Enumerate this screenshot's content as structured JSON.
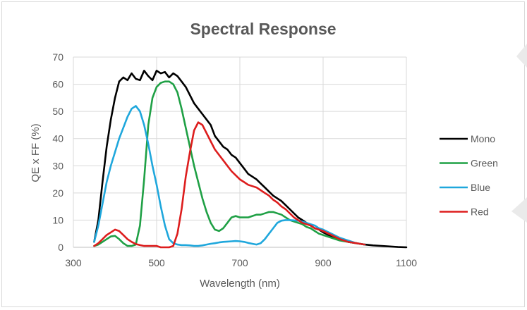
{
  "chart_data": {
    "type": "line",
    "title": "Spectral Response",
    "xlabel": "Wavelength (nm)",
    "ylabel": "QE x FF (%)",
    "xlim": [
      300,
      1100
    ],
    "ylim": [
      0,
      70
    ],
    "xticks": [
      300,
      500,
      700,
      900,
      1100
    ],
    "yticks": [
      0,
      10,
      20,
      30,
      40,
      50,
      60,
      70
    ],
    "grid": "vertical and horizontal",
    "legend_position": "right",
    "series": [
      {
        "name": "Mono",
        "color": "#000000",
        "x": [
          350,
          360,
          370,
          380,
          390,
          400,
          410,
          420,
          430,
          440,
          450,
          460,
          470,
          480,
          490,
          500,
          510,
          520,
          530,
          540,
          550,
          560,
          570,
          580,
          590,
          600,
          610,
          620,
          630,
          640,
          650,
          660,
          670,
          680,
          690,
          700,
          710,
          720,
          730,
          740,
          750,
          760,
          770,
          780,
          790,
          800,
          810,
          820,
          830,
          840,
          850,
          860,
          870,
          880,
          890,
          900,
          920,
          940,
          960,
          980,
          1000,
          1020,
          1040,
          1060,
          1080,
          1100
        ],
        "y": [
          2,
          10,
          24,
          37,
          47,
          55,
          61,
          62.5,
          61.5,
          64,
          62,
          61.5,
          65,
          63,
          61.5,
          65,
          64,
          64.5,
          62.5,
          64,
          63,
          61,
          59,
          56,
          53,
          51,
          49,
          47,
          45,
          41,
          39,
          37,
          36,
          34,
          33,
          31,
          29,
          27,
          26,
          25,
          23.5,
          22,
          20.5,
          19,
          18,
          17,
          15.5,
          14,
          12.5,
          11,
          10,
          9,
          8,
          7,
          6.5,
          5.5,
          4,
          3,
          2,
          1.5,
          1,
          0.7,
          0.5,
          0.3,
          0.1,
          0
        ]
      },
      {
        "name": "Green",
        "color": "#1fa045",
        "x": [
          350,
          360,
          370,
          380,
          390,
          400,
          410,
          420,
          430,
          440,
          450,
          460,
          470,
          480,
          490,
          500,
          510,
          520,
          530,
          540,
          550,
          560,
          570,
          580,
          590,
          600,
          610,
          620,
          630,
          640,
          650,
          660,
          670,
          680,
          690,
          700,
          710,
          720,
          730,
          740,
          750,
          760,
          770,
          780,
          790,
          800,
          810,
          820,
          830,
          840,
          850,
          860,
          870,
          880,
          890,
          900,
          920,
          940,
          960,
          980,
          1000
        ],
        "y": [
          0.5,
          1,
          2,
          3,
          4,
          4.2,
          3,
          1.5,
          0.5,
          0.5,
          1,
          8,
          25,
          45,
          55,
          59,
          60.5,
          61,
          61,
          60,
          57,
          51,
          44,
          37,
          30,
          24,
          18,
          13,
          9,
          6.5,
          6,
          7,
          9,
          11,
          11.5,
          11,
          11,
          11,
          11.5,
          12,
          12,
          12.5,
          13,
          13,
          12.5,
          12,
          11,
          10,
          9.5,
          9,
          8.5,
          7.5,
          7,
          6,
          5,
          4.5,
          3.5,
          2.5,
          2,
          1.5,
          1
        ]
      },
      {
        "name": "Blue",
        "color": "#1fa7dc",
        "x": [
          350,
          360,
          370,
          380,
          390,
          400,
          410,
          420,
          430,
          440,
          450,
          460,
          470,
          480,
          490,
          500,
          510,
          520,
          530,
          540,
          550,
          560,
          570,
          580,
          590,
          600,
          610,
          620,
          630,
          640,
          650,
          660,
          670,
          680,
          690,
          700,
          710,
          720,
          730,
          740,
          750,
          760,
          770,
          780,
          790,
          800,
          810,
          820,
          830,
          840,
          850,
          860,
          870,
          880,
          890,
          900,
          920,
          940,
          960,
          980,
          1000
        ],
        "y": [
          2,
          8,
          16,
          24,
          30,
          35,
          40,
          44,
          48,
          51,
          52,
          50,
          45,
          38,
          30,
          23,
          15,
          8,
          3,
          1.5,
          1,
          0.8,
          0.8,
          0.7,
          0.5,
          0.5,
          0.7,
          1,
          1.3,
          1.5,
          1.8,
          2,
          2.1,
          2.2,
          2.3,
          2.2,
          2,
          1.6,
          1.3,
          1,
          1.5,
          3,
          5,
          7,
          9,
          9.8,
          10,
          10,
          9.9,
          9.8,
          9.5,
          9,
          8.5,
          8,
          7,
          6.5,
          5,
          3.5,
          2.5,
          1.5,
          1
        ]
      },
      {
        "name": "Red",
        "color": "#dd1d1d",
        "x": [
          350,
          360,
          370,
          380,
          390,
          400,
          410,
          420,
          430,
          440,
          450,
          460,
          470,
          480,
          490,
          500,
          510,
          520,
          530,
          540,
          550,
          560,
          570,
          580,
          590,
          600,
          610,
          620,
          630,
          640,
          650,
          660,
          670,
          680,
          690,
          700,
          710,
          720,
          730,
          740,
          750,
          760,
          770,
          780,
          790,
          800,
          810,
          820,
          830,
          840,
          850,
          860,
          870,
          880,
          890,
          900,
          920,
          940,
          960,
          980,
          1000
        ],
        "y": [
          0.5,
          1.5,
          3,
          4.5,
          5.5,
          6.5,
          6,
          4.5,
          3,
          2,
          1.2,
          0.8,
          0.5,
          0.5,
          0.5,
          0.5,
          0,
          0,
          0,
          0.5,
          5,
          14,
          26,
          35,
          43,
          46,
          45,
          42,
          39,
          36,
          34,
          32,
          30,
          28,
          26.5,
          25,
          24,
          23,
          22.5,
          22,
          21,
          20,
          19,
          17.5,
          16.5,
          15,
          14,
          12.5,
          11,
          10,
          9,
          8.5,
          8,
          7,
          6.5,
          6,
          4.5,
          3,
          2,
          1.5,
          1
        ]
      }
    ]
  }
}
